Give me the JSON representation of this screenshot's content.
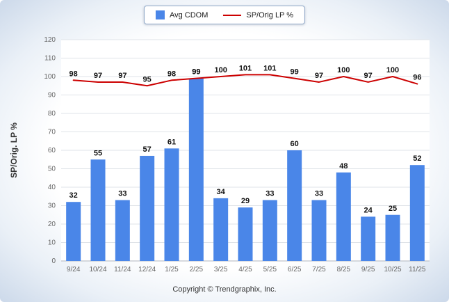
{
  "chart_data": {
    "type": "combo",
    "categories": [
      "9/24",
      "10/24",
      "11/24",
      "12/24",
      "1/25",
      "2/25",
      "3/25",
      "4/25",
      "5/25",
      "6/25",
      "7/25",
      "8/25",
      "9/25",
      "10/25",
      "11/25"
    ],
    "series": [
      {
        "name": "Avg CDOM",
        "type": "bar",
        "color": "#4a86e8",
        "values": [
          32,
          55,
          33,
          57,
          61,
          99,
          34,
          29,
          33,
          60,
          33,
          48,
          24,
          25,
          52
        ]
      },
      {
        "name": "SP/Orig LP %",
        "type": "line",
        "color": "#cc0000",
        "values": [
          98,
          97,
          97,
          95,
          98,
          99,
          100,
          101,
          101,
          99,
          97,
          100,
          97,
          100,
          96
        ]
      }
    ],
    "title": "",
    "xlabel": "",
    "ylabel": "SP/Orig. LP %",
    "ylim": [
      0,
      120
    ],
    "ytick_step": 10,
    "grid": true,
    "legend_position": "top-center",
    "colors": {
      "bar_fill": "#4a86e8",
      "line_stroke": "#cc0000",
      "gridline": "#dfe3e8",
      "axis_line": "#b0b6bd",
      "tick_text": "#666666",
      "value_label_text": "#111111"
    }
  },
  "footer": {
    "copyright_text": "Copyright © Trendgraphix, Inc."
  }
}
